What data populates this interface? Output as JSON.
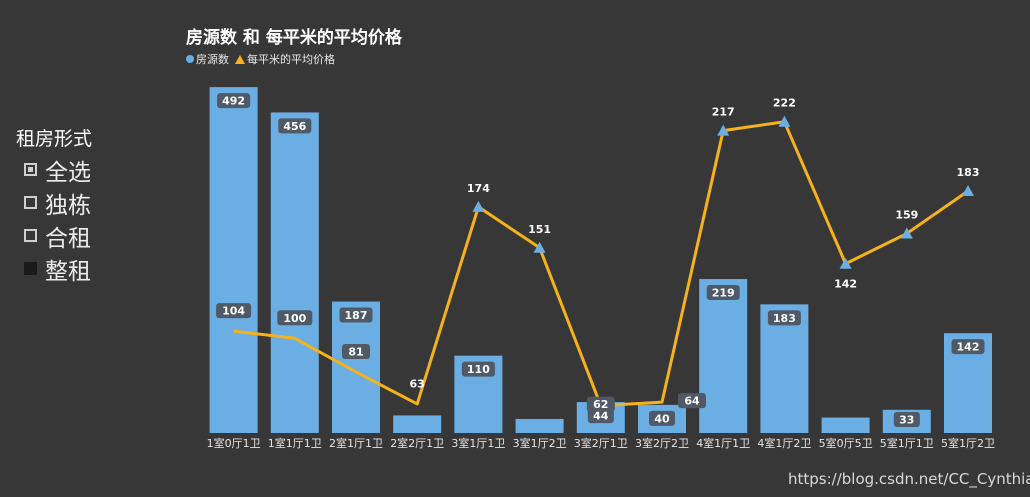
{
  "chart_data": {
    "type": "bar",
    "title": "房源数 和 每平米的平均价格",
    "legend": [
      {
        "name": "房源数",
        "marker": "circle",
        "color": "#6aaee4"
      },
      {
        "name": "每平米的平均价格",
        "marker": "triangle",
        "color": "#f5b21d"
      }
    ],
    "categories": [
      "1室0厅1卫",
      "1室1厅1卫",
      "2室1厅1卫",
      "2室2厅1卫",
      "3室1厅1卫",
      "3室1厅2卫",
      "3室2厅1卫",
      "3室2厅2卫",
      "4室1厅1卫",
      "4室1厅2卫",
      "5室0厅5卫",
      "5室1厅1卫",
      "5室1厅2卫"
    ],
    "series": [
      {
        "name": "房源数",
        "type": "bar",
        "color": "#6aaee4",
        "values": [
          492,
          456,
          187,
          25,
          110,
          20,
          44,
          40,
          219,
          183,
          22,
          33,
          142
        ],
        "labels": [
          "492",
          "456",
          "187",
          "",
          "110",
          "",
          "44",
          "40",
          "219",
          "183",
          "",
          "33",
          "142"
        ]
      },
      {
        "name": "每平米的平均价格",
        "type": "line",
        "color": "#f5b21d",
        "values": [
          104,
          100,
          81,
          63,
          174,
          151,
          62,
          64,
          217,
          222,
          142,
          159,
          183
        ],
        "labels": [
          "104",
          "100",
          "81",
          "63",
          "174",
          "151",
          "62",
          "64",
          "217",
          "222",
          "142",
          "159",
          "183"
        ]
      }
    ],
    "legend_placement": "top-left",
    "grid": false
  },
  "filter": {
    "title": "租房形式",
    "options": [
      {
        "label": "全选",
        "state": "partial"
      },
      {
        "label": "独栋",
        "state": "unchecked"
      },
      {
        "label": "合租",
        "state": "unchecked"
      },
      {
        "label": "整租",
        "state": "checked"
      }
    ]
  },
  "watermark": "https://blog.csdn.net/CC_Cynthia"
}
